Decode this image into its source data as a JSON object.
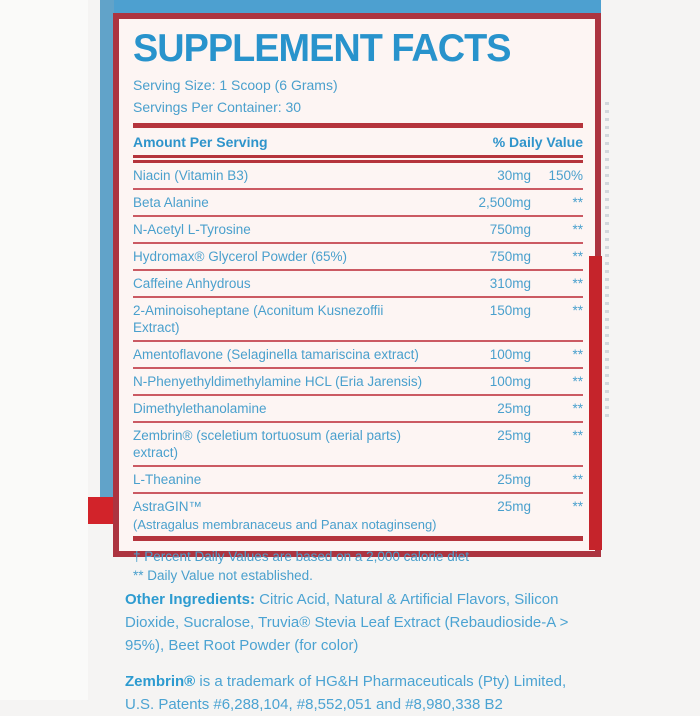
{
  "colors": {
    "accent_blue": "#2893cc",
    "text_blue": "#4aa0cd",
    "border_red": "#ac3440",
    "rule_red": "#b5343c",
    "separator_red": "#cb5a63",
    "panel_background": "#fdf5f3",
    "band_blue": "#4da0d0",
    "bright_red": "#c5242b",
    "page_background": "#f5f4f3"
  },
  "supplement_facts": {
    "title": "SUPPLEMENT FACTS",
    "serving_size": "Serving Size: 1 Scoop (6 Grams)",
    "servings_per_container": "Servings Per Container: 30",
    "header": {
      "amount_col": "Amount Per Serving",
      "dv_col": "% Daily Value"
    },
    "rows": [
      {
        "name": "Niacin (Vitamin B3)",
        "amount": "30mg",
        "dv": "150%"
      },
      {
        "name": "Beta Alanine",
        "amount": "2,500mg",
        "dv": "**"
      },
      {
        "name": "N-Acetyl L-Tyrosine",
        "amount": "750mg",
        "dv": "**"
      },
      {
        "name": "Hydromax® Glycerol Powder (65%)",
        "amount": "750mg",
        "dv": "**"
      },
      {
        "name": "Caffeine Anhydrous",
        "amount": "310mg",
        "dv": "**"
      },
      {
        "name": "2-Aminoisoheptane (Aconitum Kusnezoffii Extract)",
        "amount": "150mg",
        "dv": "**"
      },
      {
        "name": "Amentoflavone (Selaginella tamariscina extract)",
        "amount": "100mg",
        "dv": "**"
      },
      {
        "name": "N-Phenyethyldimethylamine HCL (Eria Jarensis)",
        "amount": "100mg",
        "dv": "**"
      },
      {
        "name": "Dimethylethanolamine",
        "amount": "25mg",
        "dv": "**"
      },
      {
        "name": "Zembrin® (sceletium tortuosum (aerial parts) extract)",
        "amount": "25mg",
        "dv": "**"
      },
      {
        "name": "L-Theanine",
        "amount": "25mg",
        "dv": "**"
      },
      {
        "name": "AstraGIN™",
        "sub": "(Astragalus membranaceus and Panax notaginseng)",
        "amount": "25mg",
        "dv": "**"
      }
    ],
    "footnotes": [
      "† Percent Daily Values are based on a 2,000 calorie diet",
      "** Daily Value not established."
    ]
  },
  "other_ingredients": {
    "label": "Other Ingredients:",
    "text": " Citric Acid, Natural & Artificial Flavors, Silicon Dioxide, Sucralose, Truvia® Stevia Leaf Extract (Rebaudioside-A > 95%), Beet Root Powder (for color)"
  },
  "trademark_note": {
    "label": "Zembrin®",
    "text": " is a trademark of HG&H Pharmaceuticals (Pty) Limited, U.S. Patents #6,288,104, #8,552,051 and #8,980,338 B2"
  }
}
